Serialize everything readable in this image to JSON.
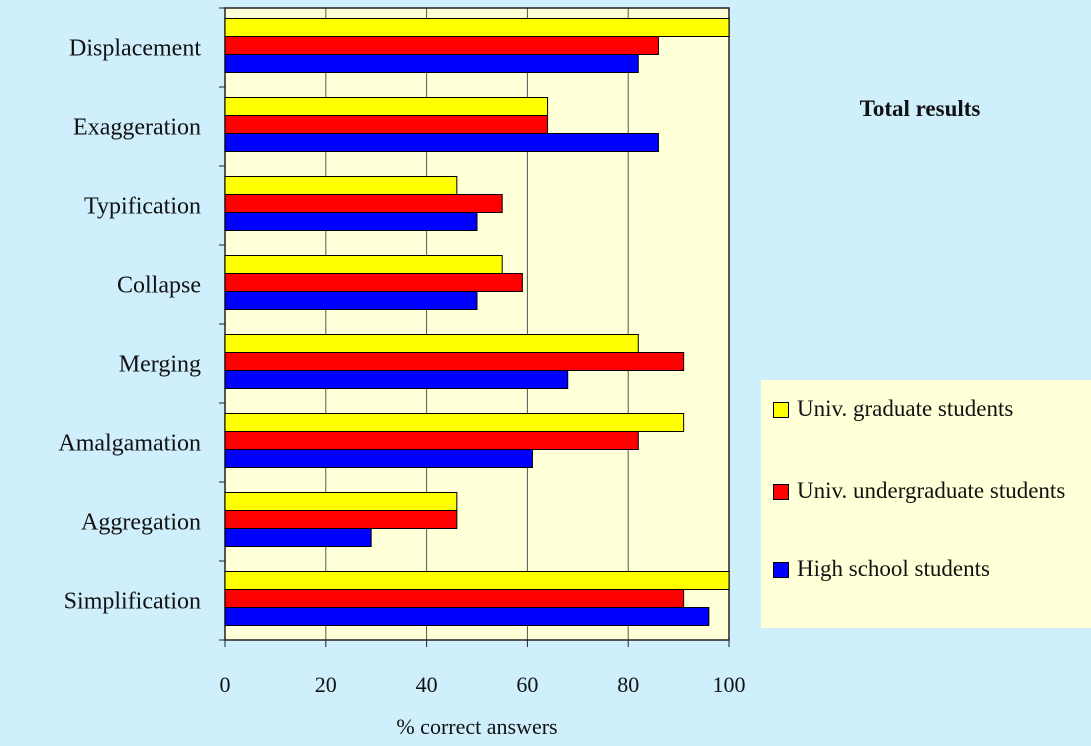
{
  "chart_data": {
    "type": "bar",
    "orientation": "horizontal",
    "title": "Total results",
    "xlabel": "% correct answers",
    "ylabel": "",
    "xlim": [
      0,
      100
    ],
    "xticks": [
      "0",
      "20",
      "40",
      "60",
      "80",
      "100"
    ],
    "grid": true,
    "legend_position": "right",
    "plot_background": "#ffffd8",
    "categories": [
      "Displacement",
      "Exaggeration",
      "Typification",
      "Collapse",
      "Merging",
      "Amalgamation",
      "Aggregation",
      "Simplification"
    ],
    "series": [
      {
        "name": "Univ. graduate students",
        "color": "#ffff00",
        "values": [
          100,
          64,
          46,
          55,
          82,
          91,
          46,
          100
        ]
      },
      {
        "name": "Univ. undergraduate students",
        "color": "#ff0000",
        "values": [
          86,
          64,
          55,
          59,
          91,
          82,
          46,
          91
        ]
      },
      {
        "name": "High school students",
        "color": "#0000ff",
        "values": [
          82,
          86,
          50,
          50,
          68,
          61,
          29,
          96
        ]
      }
    ]
  }
}
